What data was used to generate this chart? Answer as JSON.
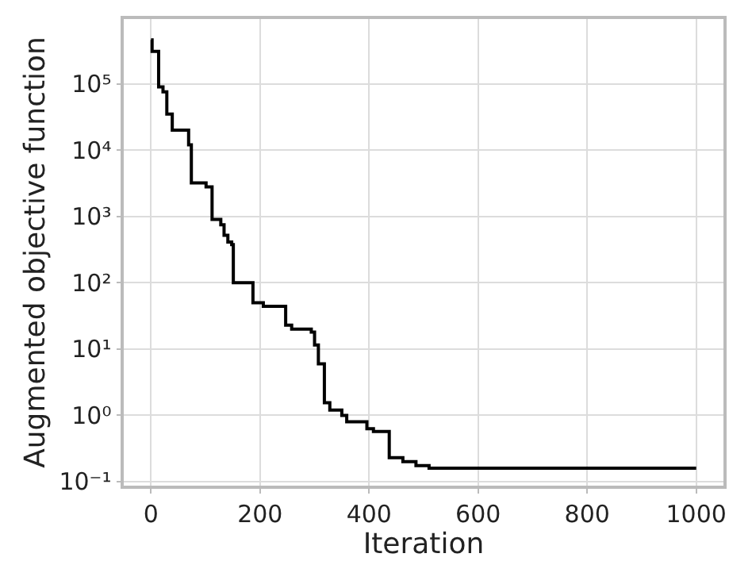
{
  "chart_data": {
    "type": "step",
    "xlabel": "Iteration",
    "ylabel": "Augmented objective function",
    "log": "y",
    "grid": true,
    "marker": "none",
    "line_style": "solid",
    "xlim": [
      -50,
      1050
    ],
    "xticks": [
      0,
      200,
      400,
      600,
      800,
      1000
    ],
    "ylim": [
      0.087,
      950000
    ],
    "yticks": [
      {
        "value": 0.1,
        "label": "10⁻¹"
      },
      {
        "value": 1,
        "label": "10⁰"
      },
      {
        "value": 10,
        "label": "10¹"
      },
      {
        "value": 100,
        "label": "10²"
      },
      {
        "value": 1000,
        "label": "10³"
      },
      {
        "value": 10000,
        "label": "10⁴"
      },
      {
        "value": 100000,
        "label": "10⁵"
      }
    ],
    "series": [
      {
        "color": "#000000",
        "x": [
          0,
          2,
          14,
          22,
          29,
          39,
          69,
          74,
          101,
          112,
          128,
          134,
          141,
          148,
          151,
          187,
          206,
          247,
          258,
          294,
          300,
          307,
          318,
          328,
          350,
          359,
          396,
          408,
          437,
          462,
          486,
          510,
          1000
        ],
        "values": [
          460000,
          310000,
          90000,
          76000,
          35000,
          20000,
          12000,
          3200,
          2800,
          900,
          750,
          520,
          410,
          375,
          100,
          50,
          44,
          23,
          20,
          18,
          11.5,
          6,
          1.55,
          1.2,
          1.0,
          0.8,
          0.63,
          0.57,
          0.23,
          0.2,
          0.175,
          0.16,
          0.16
        ]
      }
    ]
  }
}
